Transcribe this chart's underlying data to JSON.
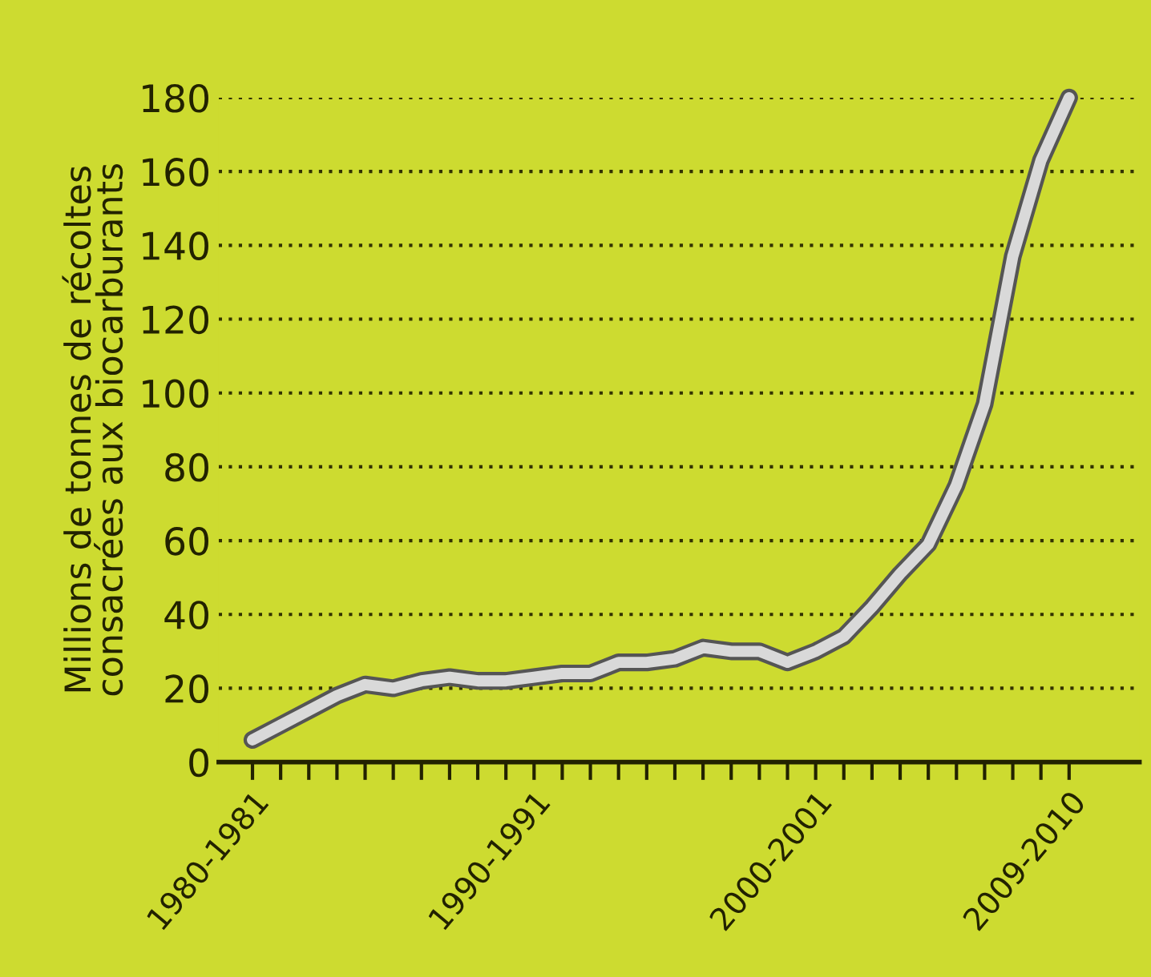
{
  "chart_data": {
    "type": "line",
    "ylabel": "Millions de tonnes de récoltes\nconsacrées aux biocarburants",
    "categories": [
      "1980-1981",
      null,
      null,
      null,
      null,
      null,
      null,
      null,
      null,
      null,
      "1990-1991",
      null,
      null,
      null,
      null,
      null,
      null,
      null,
      null,
      null,
      "2000-2001",
      null,
      null,
      null,
      null,
      null,
      null,
      null,
      null,
      "2009-2010"
    ],
    "series": [
      {
        "color": "#d9d9d9",
        "values": [
          6,
          10,
          14,
          18,
          21,
          20,
          22,
          23,
          22,
          22,
          23,
          24,
          24,
          27,
          27,
          28,
          31,
          30,
          30,
          27,
          30,
          34,
          42,
          51,
          59,
          75,
          97,
          137,
          163,
          180
        ]
      }
    ],
    "ylim": [
      0,
      180
    ],
    "yticks": [
      0,
      20,
      40,
      60,
      80,
      100,
      120,
      140,
      160,
      180
    ],
    "grid": "y",
    "marker": "none",
    "line_style": "solid",
    "legend": false
  }
}
